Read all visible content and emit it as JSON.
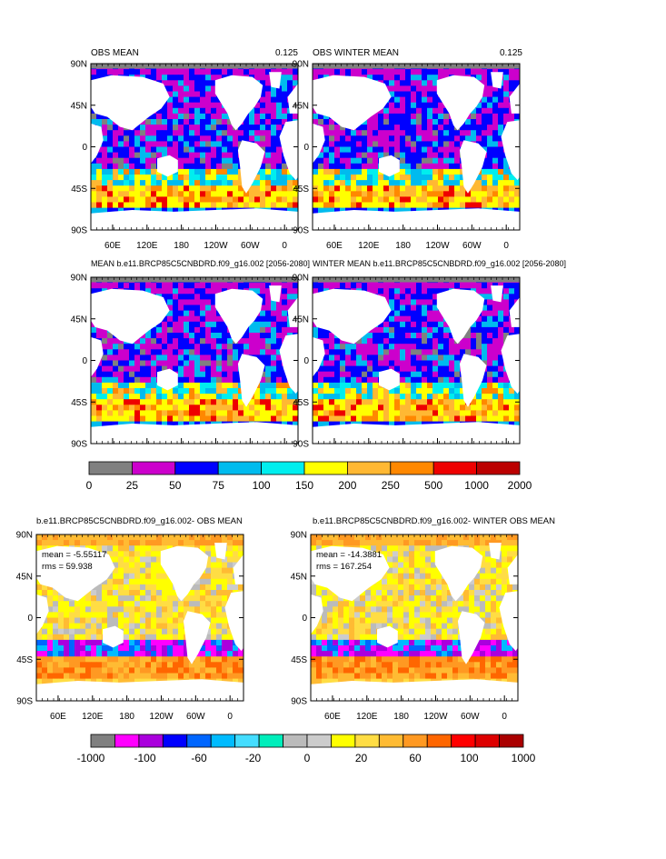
{
  "figure": {
    "background": "#ffffff"
  },
  "panels": [
    {
      "id": "obs-mean",
      "title_left": "OBS MEAN",
      "title_right": "0.125",
      "kind": "abs",
      "show_xlabels": true,
      "seed": 11
    },
    {
      "id": "obs-winter-mean",
      "title_left": "OBS WINTER MEAN",
      "title_right": "0.125",
      "kind": "abs",
      "show_xlabels": true,
      "seed": 23
    },
    {
      "id": "model-mean",
      "title_left": "MEAN b.e11.BRCP85C5CNBDRD.f09_g16.002 [2056-2080]",
      "title_right": "",
      "kind": "abs",
      "show_xlabels": false,
      "seed": 37
    },
    {
      "id": "model-winter-mean",
      "title_left": "WINTER MEAN b.e11.BRCP85C5CNBDRD.f09_g16.002 [2056-2080]",
      "title_right": "",
      "kind": "abs",
      "show_xlabels": false,
      "seed": 41
    },
    {
      "id": "diff-mean",
      "title_left": "b.e11.BRCP85C5CNBDRD.f09_g16.002- OBS MEAN",
      "title_right": "",
      "kind": "diff",
      "show_xlabels": true,
      "seed": 53,
      "stats": [
        "mean = -5.55117",
        "rms = 59.938"
      ]
    },
    {
      "id": "diff-winter-mean",
      "title_left": "b.e11.BRCP85C5CNBDRD.f09_g16.002- WINTER OBS MEAN",
      "title_right": "",
      "kind": "diff",
      "show_xlabels": true,
      "seed": 67,
      "stats": [
        "mean = -14.3881",
        "rms = 167.254"
      ]
    }
  ],
  "chart_data": [
    {
      "type": "heatmap",
      "title": "OBS MEAN",
      "subtitle": "0.125",
      "y_ticks": [
        "90N",
        "45N",
        "0",
        "45S",
        "90S"
      ],
      "x_ticks": [
        "60E",
        "120E",
        "180",
        "120W",
        "60W",
        "0"
      ],
      "color_levels": [
        0,
        25,
        50,
        75,
        100,
        150,
        200,
        250,
        500,
        1000,
        2000
      ]
    },
    {
      "type": "heatmap",
      "title": "OBS WINTER MEAN",
      "subtitle": "0.125",
      "y_ticks": [
        "90N",
        "45N",
        "0",
        "45S",
        "90S"
      ],
      "x_ticks": [
        "60E",
        "120E",
        "180",
        "120W",
        "60W",
        "0"
      ],
      "color_levels": [
        0,
        25,
        50,
        75,
        100,
        150,
        200,
        250,
        500,
        1000,
        2000
      ]
    },
    {
      "type": "heatmap",
      "title": "MEAN b.e11.BRCP85C5CNBDRD.f09_g16.002 [2056-2080]",
      "y_ticks": [
        "90N",
        "45N",
        "0",
        "45S",
        "90S"
      ],
      "color_levels": [
        0,
        25,
        50,
        75,
        100,
        150,
        200,
        250,
        500,
        1000,
        2000
      ]
    },
    {
      "type": "heatmap",
      "title": "WINTER MEAN b.e11.BRCP85C5CNBDRD.f09_g16.002 [2056-2080]",
      "y_ticks": [
        "90N",
        "45N",
        "0",
        "45S",
        "90S"
      ],
      "color_levels": [
        0,
        25,
        50,
        75,
        100,
        150,
        200,
        250,
        500,
        1000,
        2000
      ]
    },
    {
      "type": "heatmap",
      "title": "b.e11.BRCP85C5CNBDRD.f09_g16.002- OBS MEAN",
      "annotations": [
        "mean = -5.55117",
        "rms = 59.938"
      ],
      "y_ticks": [
        "90N",
        "45N",
        "0",
        "45S",
        "90S"
      ],
      "x_ticks": [
        "60E",
        "120E",
        "180",
        "120W",
        "60W",
        "0"
      ],
      "color_levels": [
        -1000,
        -100,
        -60,
        -20,
        0,
        20,
        60,
        100,
        1000
      ]
    },
    {
      "type": "heatmap",
      "title": "b.e11.BRCP85C5CNBDRD.f09_g16.002- WINTER OBS MEAN",
      "annotations": [
        "mean = -14.3881",
        "rms = 167.254"
      ],
      "y_ticks": [
        "90N",
        "45N",
        "0",
        "45S",
        "90S"
      ],
      "x_ticks": [
        "60E",
        "120E",
        "180",
        "120W",
        "60W",
        "0"
      ],
      "color_levels": [
        -1000,
        -100,
        -60,
        -20,
        0,
        20,
        60,
        100,
        1000
      ]
    }
  ],
  "axes": {
    "y_ticks": [
      "90N",
      "45N",
      "0",
      "45S",
      "90S"
    ],
    "x_ticks": [
      "60E",
      "120E",
      "180",
      "120W",
      "60W",
      "0"
    ]
  },
  "colorbar_abs": {
    "labels": [
      "0",
      "25",
      "50",
      "75",
      "100",
      "150",
      "200",
      "250",
      "500",
      "1000",
      "2000"
    ],
    "colors": [
      "#808080",
      "#cc00cc",
      "#0000ff",
      "#00bbee",
      "#00eeee",
      "#ffff00",
      "#ffb833",
      "#ff8800",
      "#ee0000",
      "#bb0000"
    ]
  },
  "colorbar_diff": {
    "labels": [
      "-1000",
      "-100",
      "-60",
      "-20",
      "0",
      "20",
      "60",
      "100",
      "1000"
    ],
    "colors": [
      "#808080",
      "#ff00ff",
      "#aa00dd",
      "#0000ff",
      "#0066ff",
      "#00bbff",
      "#44ddff",
      "#00eebb",
      "#bbbbbb",
      "#cccccc",
      "#ffff00",
      "#ffdd44",
      "#ffbb33",
      "#ff9922",
      "#ff6600",
      "#ff0000",
      "#dd0000",
      "#aa0000"
    ]
  },
  "colors": {
    "land_abs": "#808080",
    "land_diff": "#ffffff",
    "frame": "#000000"
  }
}
